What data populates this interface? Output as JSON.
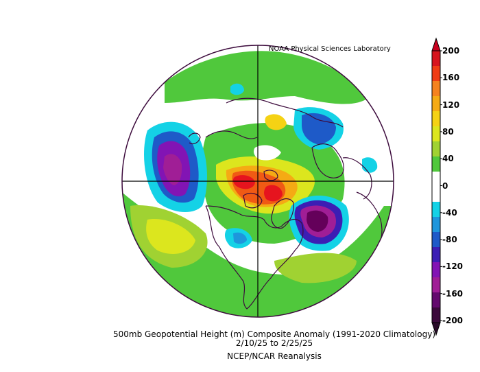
{
  "credit": "NOAA Physical Sciences Laboratory",
  "caption": {
    "line1": "500mb Geopotential Height (m) Composite Anomaly (1991-2020 Climatology)",
    "line2": "2/10/25   to 2/25/25",
    "line3": "NCEP/NCAR Reanalysis"
  },
  "colorbar": {
    "ticks": [
      "200",
      "160",
      "120",
      "80",
      "40",
      "0",
      "-40",
      "-80",
      "-120",
      "-160",
      "-200"
    ],
    "colors": [
      "#d7141e",
      "#f03c14",
      "#f5821e",
      "#f5aa14",
      "#f5d214",
      "#dce61e",
      "#a0d232",
      "#50c83c",
      "#ffffff",
      "#ffffff",
      "#14d2e6",
      "#1e96dc",
      "#1e5ac8",
      "#3c1eb4",
      "#8214b4",
      "#a01e96",
      "#640a6e",
      "#3c0a3c"
    ]
  },
  "map_colors": {
    "positive_light": "#a0d232",
    "positive_medium": "#dce61e",
    "positive_high": "#f5d214",
    "positive_max": "#e6141e",
    "negative_light": "#14d2e6",
    "negative_medium": "#1e5ac8",
    "negative_max": "#64005a",
    "coastline": "#3c0a3c"
  }
}
